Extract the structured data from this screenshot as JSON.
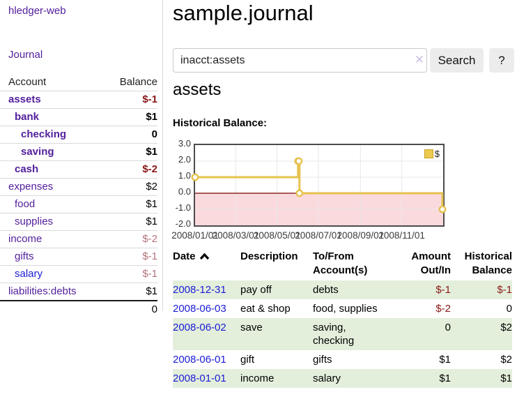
{
  "app": {
    "brand": "hledger-web",
    "nav": {
      "journal": "Journal"
    }
  },
  "colors": {
    "link_purple": "#53209c",
    "link_blue": "#1b1bd6",
    "negative_strong": "#8b1717",
    "negative_soft": "#b5737c",
    "row_stripe_green": "#e3efdb",
    "chart_line": "#e6c14e",
    "chart_negative_fill": "#fbdade",
    "chart_zero_line": "#7a0000",
    "button_bg": "#ececec"
  },
  "sidebar": {
    "headers": {
      "account": "Account",
      "balance": "Balance"
    },
    "accounts": [
      {
        "name": "assets",
        "depth": 1,
        "emphasis": true,
        "link_color": "purple",
        "balance": "$-1",
        "balance_style": "neg-strong"
      },
      {
        "name": "bank",
        "depth": 2,
        "emphasis": true,
        "link_color": "purple",
        "balance": "$1",
        "balance_style": "bold-black"
      },
      {
        "name": "checking",
        "depth": 3,
        "emphasis": true,
        "link_color": "purple",
        "balance": "0",
        "balance_style": "bold-black"
      },
      {
        "name": "saving",
        "depth": 3,
        "emphasis": true,
        "link_color": "purple",
        "balance": "$1",
        "balance_style": "bold-black"
      },
      {
        "name": "cash",
        "depth": 2,
        "emphasis": true,
        "link_color": "purple",
        "balance": "$-2",
        "balance_style": "neg-strong"
      },
      {
        "name": "expenses",
        "depth": 1,
        "emphasis": false,
        "link_color": "purple",
        "balance": "$2",
        "balance_style": "plain"
      },
      {
        "name": "food",
        "depth": 2,
        "emphasis": false,
        "link_color": "purple",
        "balance": "$1",
        "balance_style": "plain"
      },
      {
        "name": "supplies",
        "depth": 2,
        "emphasis": false,
        "link_color": "purple",
        "balance": "$1",
        "balance_style": "plain"
      },
      {
        "name": "income",
        "depth": 1,
        "emphasis": false,
        "link_color": "purple",
        "balance": "$-2",
        "balance_style": "neg-soft"
      },
      {
        "name": "gifts",
        "depth": 2,
        "emphasis": false,
        "link_color": "purple",
        "balance": "$-1",
        "balance_style": "neg-soft"
      },
      {
        "name": "salary",
        "depth": 2,
        "emphasis": false,
        "link_color": "blue",
        "balance": "$-1",
        "balance_style": "neg-soft"
      },
      {
        "name": "liabilities:debts",
        "depth": 1,
        "emphasis": false,
        "link_color": "purple",
        "balance": "$1",
        "balance_style": "plain"
      }
    ],
    "total": "0"
  },
  "header": {
    "title": "sample.journal"
  },
  "search": {
    "value": "inacct:assets",
    "clear_icon": "✕",
    "button_label": "Search",
    "help_label": "?"
  },
  "account_page": {
    "title": "assets",
    "chart_heading": "Historical Balance:"
  },
  "chart_data": {
    "type": "line",
    "step": true,
    "title": "Historical Balance",
    "legend_position": "top-right",
    "grid": true,
    "ylim": [
      -2.0,
      3.0
    ],
    "yticks": [
      3.0,
      2.0,
      1.0,
      0.0,
      -1.0,
      -2.0
    ],
    "xticks": [
      "2008/01/01",
      "2008/03/01",
      "2008/05/01",
      "2008/07/01",
      "2008/09/01",
      "2008/11/01"
    ],
    "series": [
      {
        "name": "$",
        "color": "#e6c14e",
        "points": [
          [
            "2008-01-01",
            1.0
          ],
          [
            "2008-06-01",
            2.0
          ],
          [
            "2008-06-02",
            2.0
          ],
          [
            "2008-06-03",
            0.0
          ],
          [
            "2008-12-31",
            -1.0
          ]
        ]
      }
    ]
  },
  "register": {
    "headers": [
      {
        "label": "Date",
        "sorted": "ascending"
      },
      {
        "label": "Description"
      },
      {
        "label": "To/From Account(s)"
      },
      {
        "label": "Amount Out/In"
      },
      {
        "label": "Historical Balance"
      }
    ],
    "rows": [
      {
        "date": "2008-12-31",
        "description": "pay off",
        "accounts": "debts",
        "amount": "$-1",
        "amount_negative": true,
        "balance": "$-1",
        "balance_negative": true
      },
      {
        "date": "2008-06-03",
        "description": "eat & shop",
        "accounts": "food, supplies",
        "amount": "$-2",
        "amount_negative": true,
        "balance": "0",
        "balance_negative": false
      },
      {
        "date": "2008-06-02",
        "description": "save",
        "accounts": "saving, checking",
        "amount": "0",
        "amount_negative": false,
        "balance": "$2",
        "balance_negative": false
      },
      {
        "date": "2008-06-01",
        "description": "gift",
        "accounts": "gifts",
        "amount": "$1",
        "amount_negative": false,
        "balance": "$2",
        "balance_negative": false
      },
      {
        "date": "2008-01-01",
        "description": "income",
        "accounts": "salary",
        "amount": "$1",
        "amount_negative": false,
        "balance": "$1",
        "balance_negative": false
      }
    ]
  }
}
